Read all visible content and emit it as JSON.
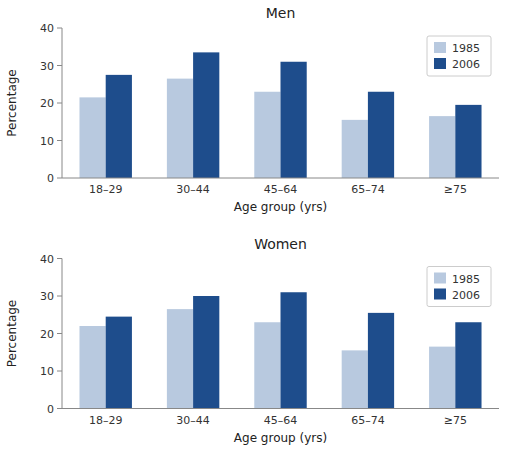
{
  "chart_data": [
    {
      "type": "bar",
      "title": "Men",
      "xlabel": "Age group (yrs)",
      "ylabel": "Percentage",
      "categories": [
        "18–29",
        "30–44",
        "45–64",
        "65–74",
        "≥75"
      ],
      "series": [
        {
          "name": "1985",
          "color": "#b8c9df",
          "values": [
            21.5,
            26.5,
            23.0,
            15.5,
            16.5
          ]
        },
        {
          "name": "2006",
          "color": "#1e4d8c",
          "values": [
            27.5,
            33.5,
            31.0,
            23.0,
            19.5
          ]
        }
      ],
      "ylim": [
        0,
        40
      ],
      "yticks": [
        0,
        10,
        20,
        30,
        40
      ],
      "grid": false,
      "legend": "upper right"
    },
    {
      "type": "bar",
      "title": "Women",
      "xlabel": "Age group (yrs)",
      "ylabel": "Percentage",
      "categories": [
        "18–29",
        "30–44",
        "45–64",
        "65–74",
        "≥75"
      ],
      "series": [
        {
          "name": "1985",
          "color": "#b8c9df",
          "values": [
            22.0,
            26.5,
            23.0,
            15.5,
            16.5
          ]
        },
        {
          "name": "2006",
          "color": "#1e4d8c",
          "values": [
            24.5,
            30.0,
            31.0,
            25.5,
            23.0
          ]
        }
      ],
      "ylim": [
        0,
        40
      ],
      "yticks": [
        0,
        10,
        20,
        30,
        40
      ],
      "grid": false,
      "legend": "upper right"
    }
  ]
}
